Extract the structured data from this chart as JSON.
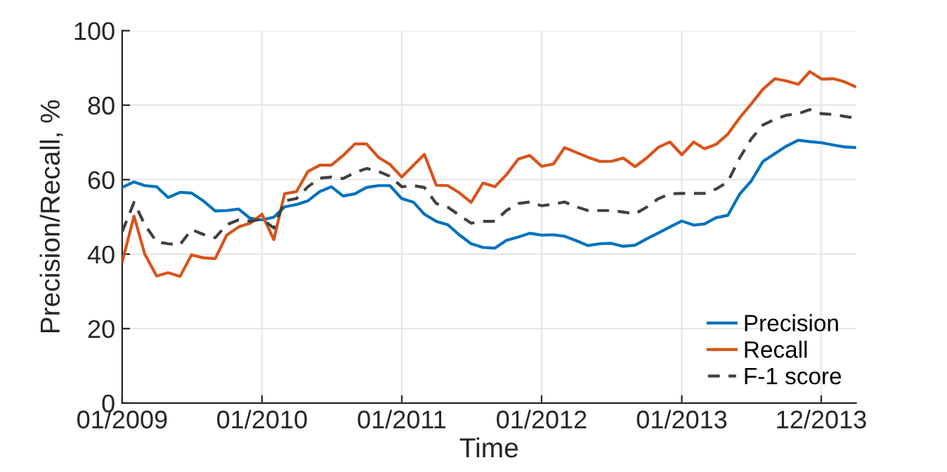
{
  "chart_data": {
    "type": "line",
    "xlabel": "Time",
    "ylabel": "Precision/Recall, %",
    "x": [
      "2009-01",
      "2009-02",
      "2009-03",
      "2009-04",
      "2009-05",
      "2009-06",
      "2009-07",
      "2009-08",
      "2009-09",
      "2009-10",
      "2009-11",
      "2009-12",
      "2010-01",
      "2010-02",
      "2010-03",
      "2010-04",
      "2010-05",
      "2010-06",
      "2010-07",
      "2010-08",
      "2010-09",
      "2010-10",
      "2010-11",
      "2010-12",
      "2011-01",
      "2011-02",
      "2011-03",
      "2011-04",
      "2011-05",
      "2011-06",
      "2011-07",
      "2011-08",
      "2011-09",
      "2011-10",
      "2011-11",
      "2011-12",
      "2012-01",
      "2012-02",
      "2012-03",
      "2012-04",
      "2012-05",
      "2012-06",
      "2012-07",
      "2012-08",
      "2012-09",
      "2012-10",
      "2012-11",
      "2012-12",
      "2013-01",
      "2013-02",
      "2013-03",
      "2013-04",
      "2013-05",
      "2013-06",
      "2013-07",
      "2013-08",
      "2013-09",
      "2013-10",
      "2013-11",
      "2013-12",
      "2014-01",
      "2014-02",
      "2014-03",
      "2014-04"
    ],
    "series": [
      {
        "name": "Precision",
        "color": "#0072bd",
        "line_style": "solid",
        "values": [
          57.9,
          59.4,
          58.4,
          58.1,
          55.2,
          56.6,
          56.4,
          54.3,
          51.6,
          51.7,
          52.1,
          49.6,
          49.2,
          49.9,
          52.7,
          53.3,
          54.3,
          56.8,
          58.1,
          55.6,
          56.2,
          57.9,
          58.4,
          58.4,
          54.9,
          53.9,
          50.7,
          48.8,
          47.9,
          45.1,
          42.8,
          41.8,
          41.6,
          43.7,
          44.6,
          45.6,
          45.1,
          45.2,
          44.8,
          43.6,
          42.3,
          42.8,
          42.9,
          42.1,
          42.4,
          44.1,
          45.7,
          47.3,
          48.9,
          47.8,
          48.1,
          49.8,
          50.4,
          56.1,
          59.6,
          64.9,
          67.0,
          69.0,
          70.6,
          70.2,
          69.9,
          69.3,
          68.8,
          68.6
        ]
      },
      {
        "name": "Recall",
        "color": "#d95319",
        "line_style": "solid",
        "values": [
          37.9,
          50.2,
          40.0,
          34.1,
          35.0,
          34.0,
          39.8,
          39.0,
          38.8,
          45.1,
          47.3,
          48.3,
          50.7,
          43.9,
          56.2,
          56.8,
          62.2,
          63.9,
          63.9,
          66.5,
          69.6,
          69.6,
          66.0,
          64.1,
          60.7,
          63.9,
          66.8,
          58.5,
          58.4,
          56.4,
          53.9,
          59.1,
          58.1,
          61.3,
          65.5,
          66.5,
          63.6,
          64.2,
          68.6,
          67.3,
          66.0,
          64.9,
          64.9,
          65.8,
          63.5,
          65.8,
          68.7,
          70.1,
          66.7,
          70.1,
          68.3,
          69.5,
          72.2,
          76.6,
          80.3,
          84.3,
          87.1,
          86.5,
          85.6,
          89.0,
          87.0,
          87.1,
          86.3,
          84.9
        ]
      },
      {
        "name": "F-1 score",
        "color": "#404040",
        "line_style": "dashed",
        "values": [
          46.0,
          53.9,
          47.9,
          43.3,
          42.8,
          42.5,
          46.6,
          45.3,
          44.4,
          47.9,
          49.2,
          48.8,
          49.4,
          47.0,
          54.3,
          54.9,
          58.1,
          60.4,
          60.7,
          60.3,
          61.9,
          63.0,
          62.2,
          60.9,
          58.1,
          58.4,
          57.9,
          53.6,
          52.6,
          50.4,
          48.3,
          48.8,
          48.8,
          51.7,
          53.6,
          54.0,
          53.0,
          53.4,
          54.0,
          52.7,
          51.7,
          51.7,
          51.7,
          51.3,
          50.8,
          52.6,
          54.9,
          56.2,
          56.3,
          56.3,
          56.3,
          57.5,
          59.4,
          65.8,
          70.9,
          74.7,
          76.2,
          77.3,
          77.7,
          78.8,
          77.7,
          77.5,
          77.0,
          76.5
        ]
      }
    ],
    "xlim": [
      "2009-01",
      "2014-04"
    ],
    "xticks": [
      {
        "value": "2009-01",
        "label": "01/2009"
      },
      {
        "value": "2010-01",
        "label": "01/2010"
      },
      {
        "value": "2011-01",
        "label": "01/2011"
      },
      {
        "value": "2012-01",
        "label": "01/2012"
      },
      {
        "value": "2013-01",
        "label": "01/2013"
      },
      {
        "value": "2013-12-31",
        "label": "12/2013"
      }
    ],
    "ylim": [
      0,
      100
    ],
    "yticks": [
      0,
      20,
      40,
      60,
      80,
      100
    ],
    "grid": true,
    "legend": "bottom right"
  }
}
